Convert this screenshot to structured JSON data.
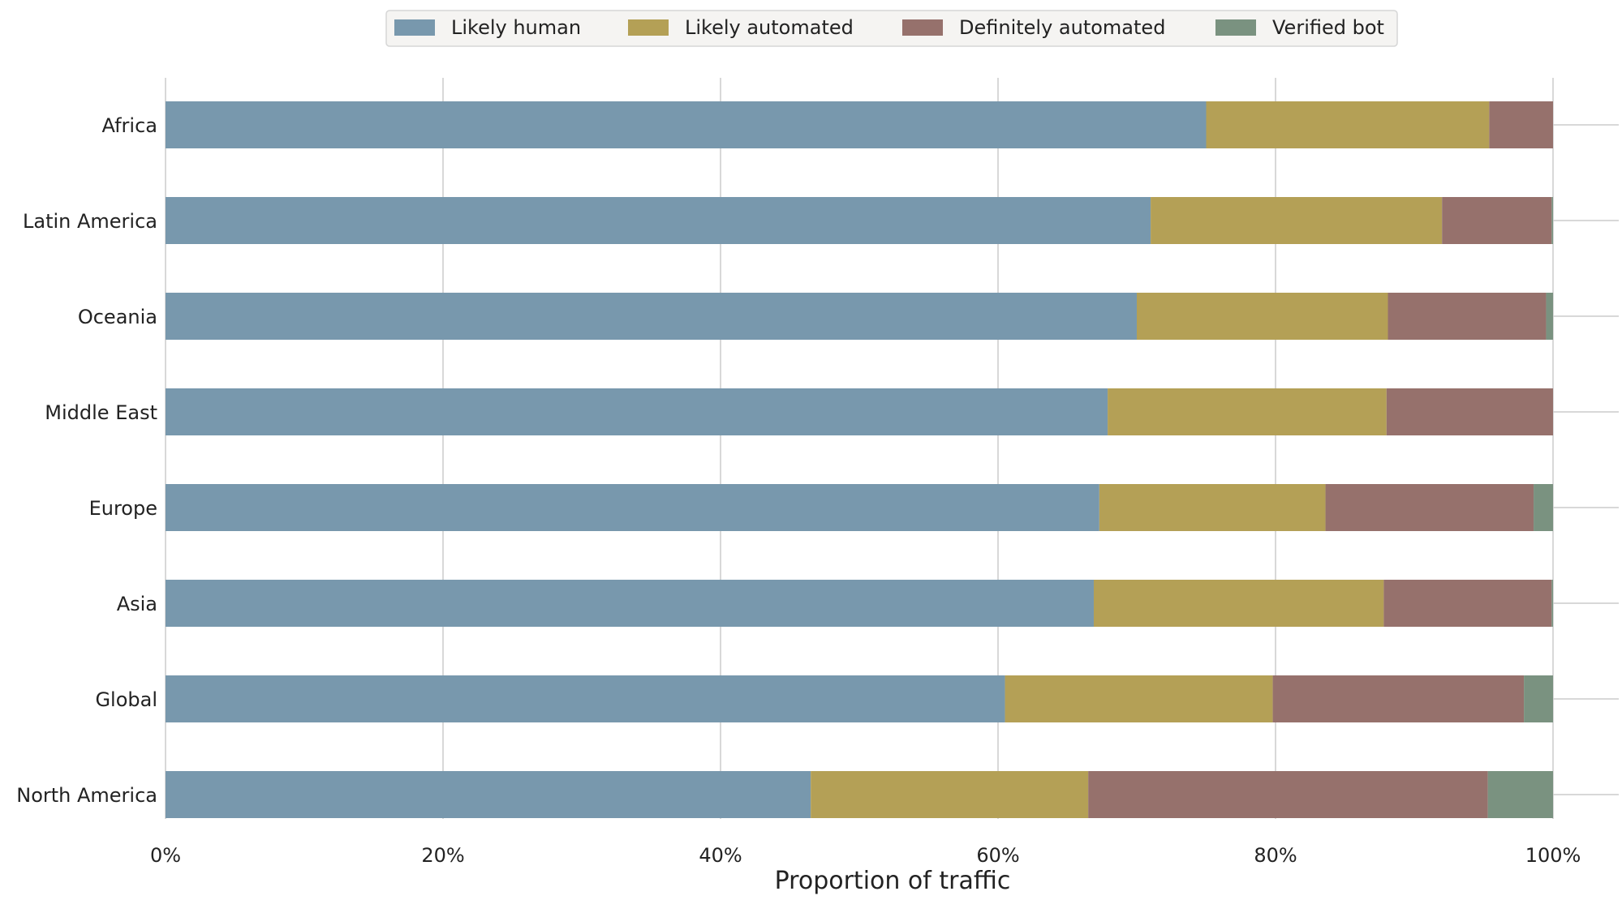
{
  "chart_data": {
    "type": "bar",
    "orientation": "horizontal",
    "stacked": true,
    "categories": [
      "Africa",
      "Latin America",
      "Oceania",
      "Middle East",
      "Europe",
      "Asia",
      "Global",
      "North America"
    ],
    "series": [
      {
        "name": "Likely human",
        "color": "#7898ad",
        "values": [
          75.0,
          71.0,
          70.0,
          67.9,
          67.3,
          66.9,
          60.5,
          46.5
        ]
      },
      {
        "name": "Likely automated",
        "color": "#b4a056",
        "values": [
          20.4,
          21.0,
          18.1,
          20.1,
          16.3,
          20.9,
          19.3,
          20.0
        ]
      },
      {
        "name": "Definitely automated",
        "color": "#96716c",
        "values": [
          4.6,
          7.9,
          11.4,
          12.0,
          15.0,
          12.1,
          18.1,
          28.8
        ]
      },
      {
        "name": "Verified bot",
        "color": "#7a9280",
        "values": [
          0.0,
          0.1,
          0.5,
          0.0,
          1.4,
          0.1,
          2.1,
          4.7
        ]
      }
    ],
    "xlabel": "Proportion of traffic",
    "xlim": [
      0,
      100
    ],
    "xticks": [
      "0%",
      "20%",
      "40%",
      "60%",
      "80%",
      "100%"
    ],
    "grid": "vertical",
    "legend": "top-center"
  }
}
